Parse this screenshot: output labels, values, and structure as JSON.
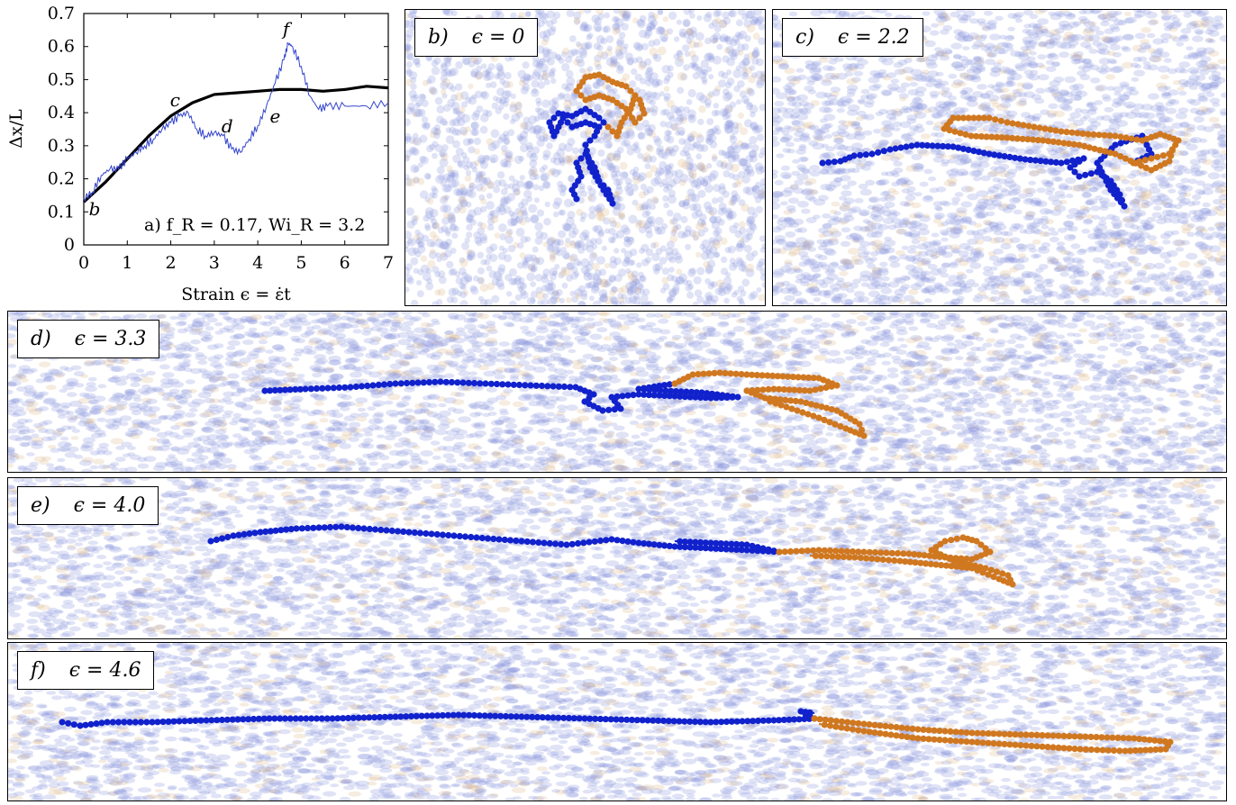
{
  "chart_data": {
    "type": "line",
    "xlabel": "Strain ϵ = ε̇t",
    "ylabel": "Δx/L",
    "xlim": [
      0,
      7
    ],
    "ylim": [
      0,
      0.7
    ],
    "xticks": [
      "0",
      "1",
      "2",
      "3",
      "4",
      "5",
      "6",
      "7"
    ],
    "yticks": [
      "0",
      "0.1",
      "0.2",
      "0.3",
      "0.4",
      "0.5",
      "0.6",
      "0.7"
    ],
    "annotation": "a) f_R = 0.17, Wi_R = 3.2",
    "grid": false,
    "series": [
      {
        "color": "#000000",
        "x": [
          0,
          0.5,
          1,
          1.5,
          2,
          2.5,
          3,
          3.5,
          4,
          4.5,
          5,
          5.5,
          6,
          6.5,
          7
        ],
        "y": [
          0.13,
          0.19,
          0.26,
          0.33,
          0.39,
          0.43,
          0.455,
          0.46,
          0.465,
          0.47,
          0.47,
          0.465,
          0.47,
          0.48,
          0.475
        ]
      },
      {
        "color": "#3344cc",
        "x": [
          0,
          0.2,
          0.4,
          0.6,
          0.8,
          1,
          1.2,
          1.4,
          1.6,
          1.8,
          2,
          2.2,
          2.4,
          2.6,
          2.8,
          3,
          3.2,
          3.4,
          3.6,
          3.8,
          4,
          4.2,
          4.4,
          4.6,
          4.7,
          4.8,
          5,
          5.2,
          5.4,
          5.6,
          6,
          6.5,
          7
        ],
        "y": [
          0.14,
          0.16,
          0.21,
          0.23,
          0.23,
          0.26,
          0.28,
          0.3,
          0.32,
          0.35,
          0.37,
          0.39,
          0.4,
          0.35,
          0.33,
          0.34,
          0.33,
          0.29,
          0.28,
          0.32,
          0.36,
          0.42,
          0.49,
          0.56,
          0.61,
          0.6,
          0.54,
          0.45,
          0.41,
          0.42,
          0.42,
          0.42,
          0.43
        ]
      }
    ],
    "point_labels": [
      {
        "text": "b",
        "x": 0.25,
        "y": 0.09
      },
      {
        "text": "c",
        "x": 2.1,
        "y": 0.42
      },
      {
        "text": "d",
        "x": 3.3,
        "y": 0.34
      },
      {
        "text": "e",
        "x": 4.4,
        "y": 0.37
      },
      {
        "text": "f",
        "x": 4.65,
        "y": 0.635
      }
    ]
  },
  "panels": [
    {
      "letter": "b)",
      "eps": "ϵ = 0"
    },
    {
      "letter": "c)",
      "eps": "ϵ = 2.2"
    },
    {
      "letter": "d)",
      "eps": "ϵ = 3.3"
    },
    {
      "letter": "e)",
      "eps": "ϵ = 4.0"
    },
    {
      "letter": "f)",
      "eps": "ϵ = 4.6"
    }
  ],
  "colors": {
    "polymer_a": "#1122cc",
    "polymer_b": "#d07820",
    "background_a": "#8f9be0",
    "background_b": "#e0b98f"
  }
}
